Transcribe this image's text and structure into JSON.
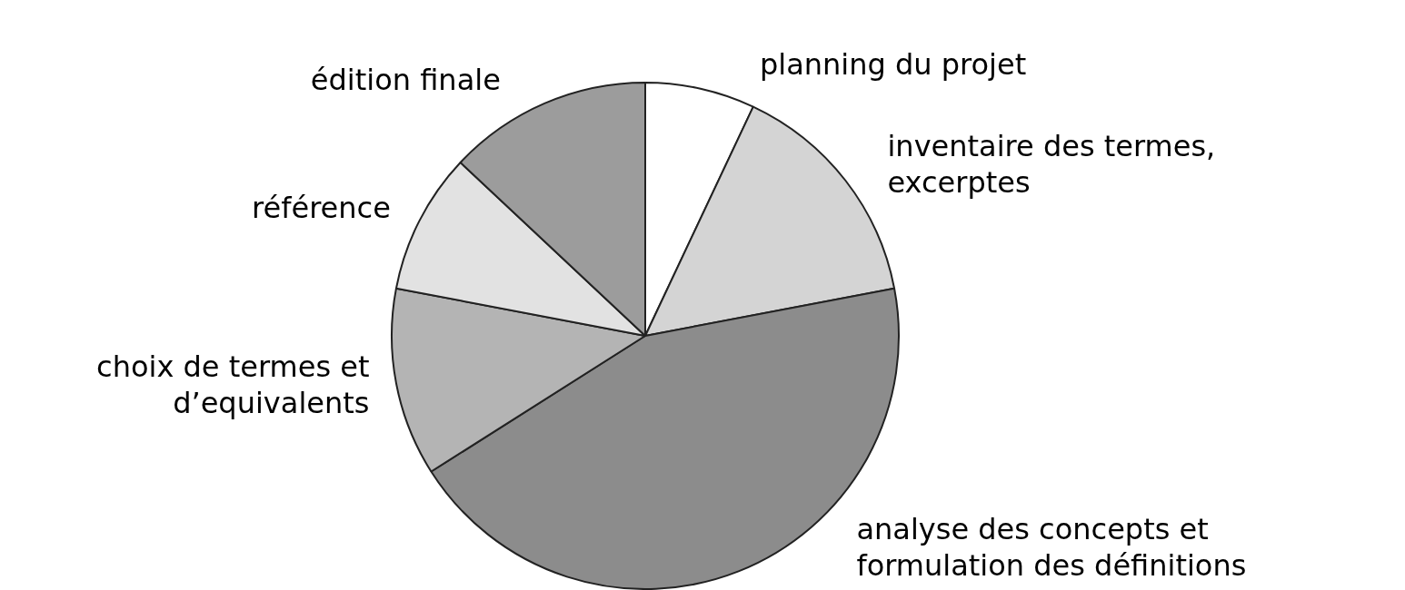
{
  "chart_data": {
    "type": "pie",
    "categories": [
      "planning du projet",
      "inventaire des termes, excerptes",
      "analyse des concepts et formulation des définitions",
      "choix de termes et d’equivalents",
      "référence",
      "édition finale"
    ],
    "values": [
      7,
      15,
      44,
      12,
      9,
      13
    ],
    "colors": [
      "#ffffff",
      "#d4d4d4",
      "#8c8c8c",
      "#b4b4b4",
      "#e2e2e2",
      "#9c9c9c"
    ]
  }
}
